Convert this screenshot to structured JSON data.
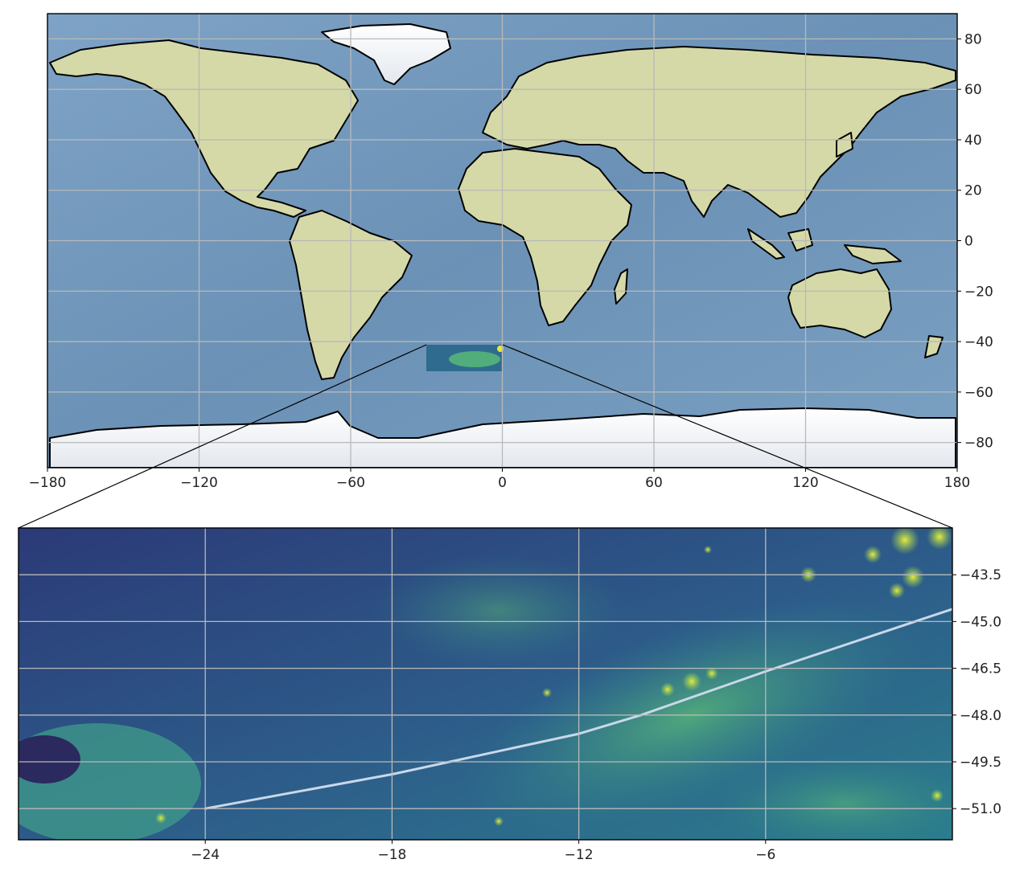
{
  "world_map": {
    "x_ticks": [
      {
        "label": "−180",
        "value": -180
      },
      {
        "label": "−120",
        "value": -120
      },
      {
        "label": "−60",
        "value": -60
      },
      {
        "label": "0",
        "value": 0
      },
      {
        "label": "60",
        "value": 60
      },
      {
        "label": "120",
        "value": 120
      },
      {
        "label": "180",
        "value": 180
      }
    ],
    "y_ticks": [
      {
        "label": "80",
        "value": 80
      },
      {
        "label": "60",
        "value": 60
      },
      {
        "label": "40",
        "value": 40
      },
      {
        "label": "20",
        "value": 20
      },
      {
        "label": "0",
        "value": 0
      },
      {
        "label": "−20",
        "value": -20
      },
      {
        "label": "−40",
        "value": -40
      },
      {
        "label": "−60",
        "value": -60
      },
      {
        "label": "−80",
        "value": -80
      }
    ],
    "lon_range": [
      -180,
      180
    ],
    "lat_range": [
      -90,
      90
    ],
    "inset_region": {
      "lon": [
        -30,
        0
      ],
      "lat": [
        -52,
        -42
      ]
    },
    "colors": {
      "ocean": "#6f95b9",
      "land": "#d4d9a7",
      "ice": "#eef1f4",
      "coast": "#000000",
      "grid": "#b9b9b9"
    }
  },
  "zoom_map": {
    "x_ticks": [
      {
        "label": "−24",
        "value": -24
      },
      {
        "label": "−18",
        "value": -18
      },
      {
        "label": "−12",
        "value": -12
      },
      {
        "label": "−6",
        "value": -6
      }
    ],
    "y_ticks": [
      {
        "label": "−43.5",
        "value": -43.5
      },
      {
        "label": "−45.0",
        "value": -45.0
      },
      {
        "label": "−46.5",
        "value": -46.5
      },
      {
        "label": "−48.0",
        "value": -48.0
      },
      {
        "label": "−49.5",
        "value": -49.5
      },
      {
        "label": "−51.0",
        "value": -51.0
      }
    ],
    "lon_range": [
      -30,
      0
    ],
    "lat_range": [
      -52,
      -42
    ],
    "track": [
      [
        -24,
        -51.0
      ],
      [
        -18,
        -49.9
      ],
      [
        -12,
        -48.6
      ],
      [
        -10,
        -48.0
      ],
      [
        -6,
        -46.6
      ],
      [
        0,
        -44.6
      ]
    ],
    "colormap": "viridis",
    "colors": {
      "low": "#2c3e78",
      "mid": "#2f8a8c",
      "high": "#c6e04f",
      "track": "#c9d8ea",
      "grid": "#b9b9b9"
    }
  }
}
